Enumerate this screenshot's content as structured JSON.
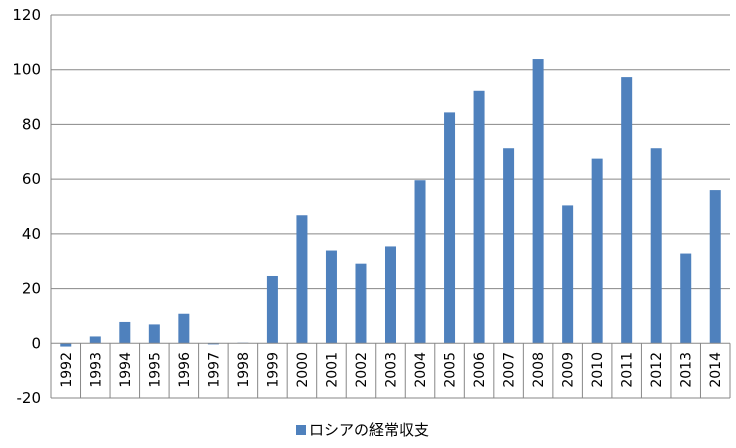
{
  "chart_data": {
    "type": "bar",
    "categories": [
      "1992",
      "1993",
      "1994",
      "1995",
      "1996",
      "1997",
      "1998",
      "1999",
      "2000",
      "2001",
      "2002",
      "2003",
      "2004",
      "2005",
      "2006",
      "2007",
      "2008",
      "2009",
      "2010",
      "2011",
      "2012",
      "2013",
      "2014"
    ],
    "series": [
      {
        "name": "ロシアの経常収支",
        "values": [
          -1.2,
          2.5,
          7.8,
          6.9,
          10.8,
          -0.4,
          0.2,
          24.6,
          46.8,
          33.9,
          29.1,
          35.4,
          59.6,
          84.4,
          92.3,
          71.3,
          103.9,
          50.4,
          67.5,
          97.3,
          71.3,
          32.8,
          56.0
        ]
      }
    ],
    "title": "",
    "xlabel": "",
    "ylabel": "",
    "ylim": [
      -20,
      120
    ],
    "yticks": [
      -20,
      0,
      20,
      40,
      60,
      80,
      100,
      120
    ],
    "grid": true,
    "legend_position": "bottom",
    "colors": {
      "bar": "#4F81BD",
      "grid": "#878787"
    }
  }
}
